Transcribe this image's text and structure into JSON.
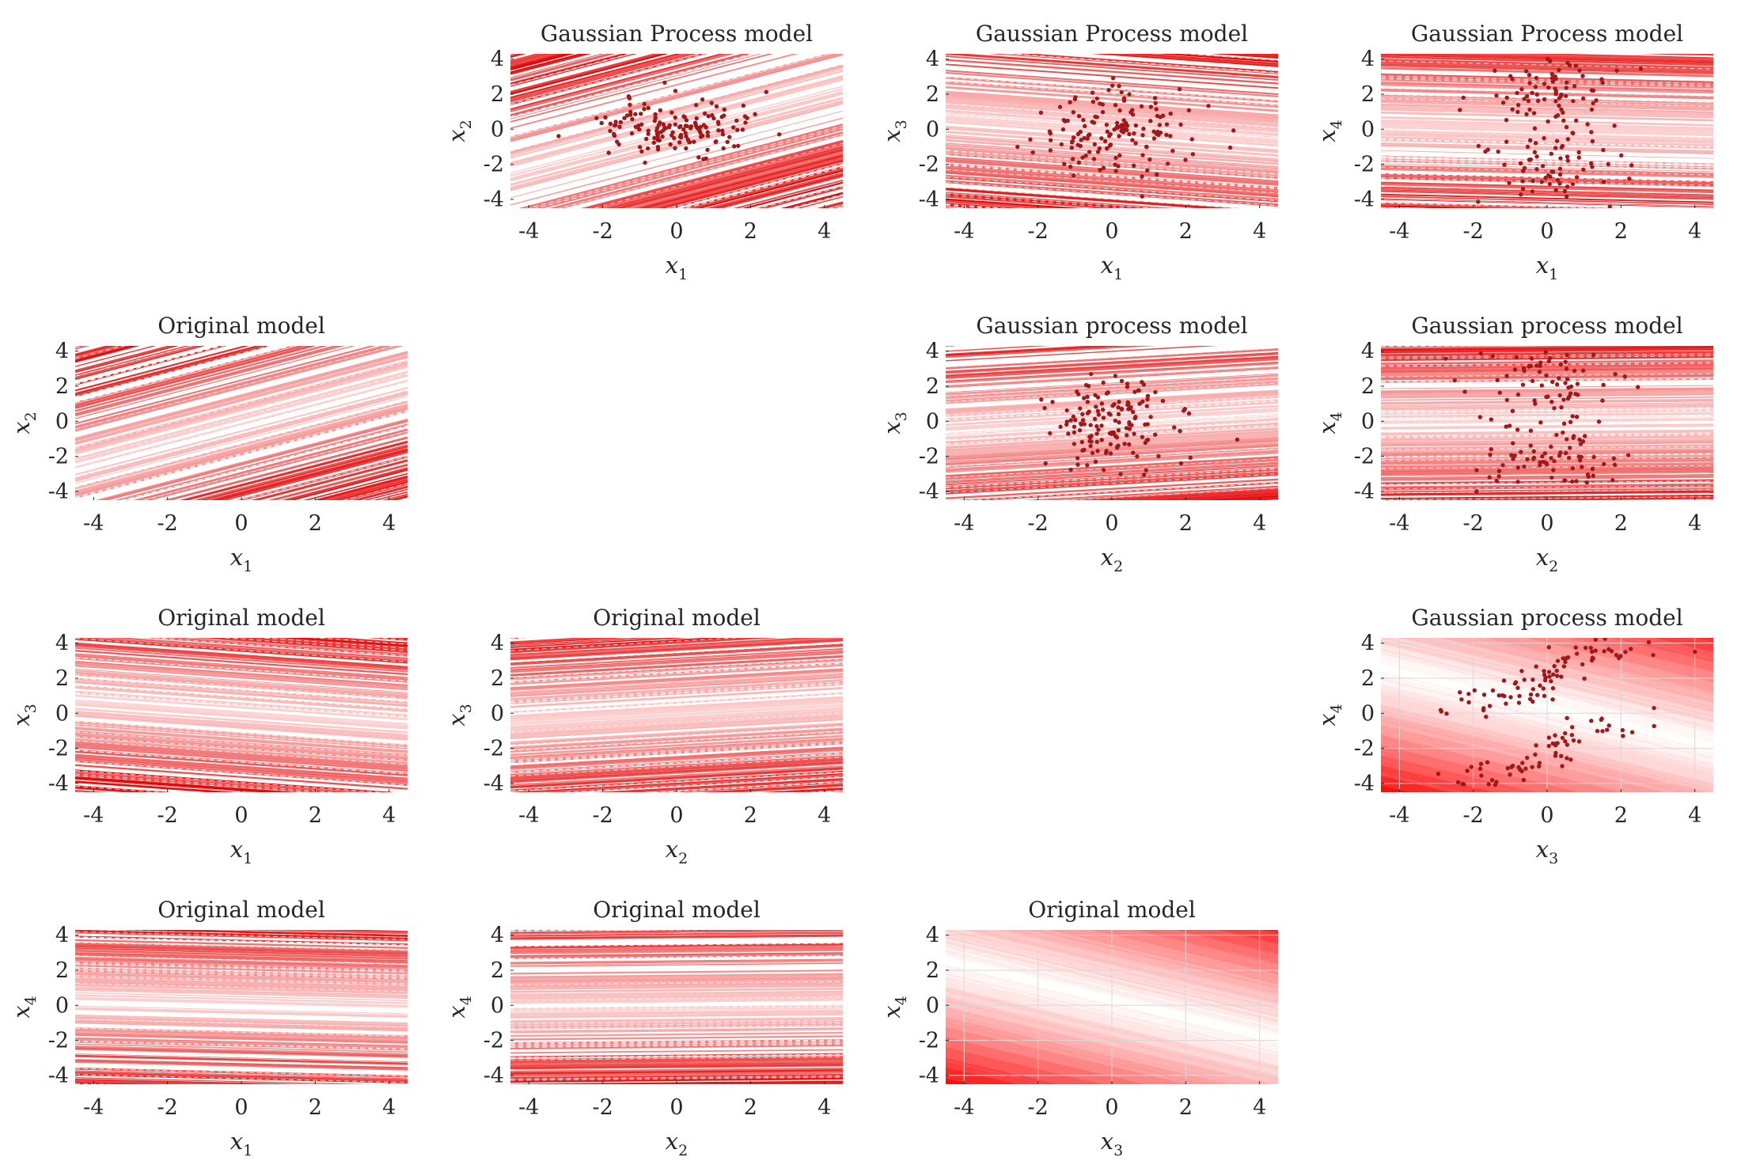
{
  "figure": {
    "rows": 4,
    "cols": 4,
    "grid_layout": "lower-triangle original models, upper-triangle Gaussian process models"
  },
  "colors": {
    "line_light": "#ffe6e6",
    "line_dark": "#e60000",
    "fill_light": "#ffffff",
    "fill_dark": "#ff0000",
    "points": "#a01818",
    "tick_text": "#262626"
  },
  "chart_data": [
    {
      "type": "contour-lines",
      "title": "Gaussian Process model",
      "row": 0,
      "col": 1,
      "xlabel": "x",
      "xsub": "1",
      "ylabel": "x",
      "ysub": "2",
      "xlim": [
        -4.5,
        4.5
      ],
      "ylim": [
        -4.5,
        4.3
      ],
      "xticks": [
        -4,
        -2,
        0,
        2,
        4
      ],
      "yticks": [
        -4,
        -2,
        0,
        2,
        4
      ],
      "slope": 0.55,
      "style": "lines",
      "scatter": true,
      "scatter_pattern": "blob",
      "scatter_spread": [
        1.1,
        0.8
      ]
    },
    {
      "type": "contour-lines",
      "title": "Gaussian Process model",
      "row": 0,
      "col": 2,
      "xlabel": "x",
      "xsub": "1",
      "ylabel": "x",
      "ysub": "3",
      "xlim": [
        -4.5,
        4.5
      ],
      "ylim": [
        -4.5,
        4.3
      ],
      "xticks": [
        -4,
        -2,
        0,
        2,
        4
      ],
      "yticks": [
        -4,
        -2,
        0,
        2,
        4
      ],
      "slope": -0.15,
      "style": "lines",
      "scatter": true,
      "scatter_pattern": "blob",
      "scatter_spread": [
        1.0,
        1.3
      ]
    },
    {
      "type": "contour-lines",
      "title": "Gaussian Process model",
      "row": 0,
      "col": 3,
      "xlabel": "x",
      "xsub": "1",
      "ylabel": "x",
      "ysub": "4",
      "xlim": [
        -4.5,
        4.5
      ],
      "ylim": [
        -4.5,
        4.3
      ],
      "xticks": [
        -4,
        -2,
        0,
        2,
        4
      ],
      "yticks": [
        -4,
        -2,
        0,
        2,
        4
      ],
      "slope": -0.05,
      "style": "lines",
      "scatter": true,
      "scatter_pattern": "bimodal",
      "scatter_spread": [
        1.0,
        1.1
      ]
    },
    {
      "type": "contour-lines",
      "title": "Original model",
      "row": 1,
      "col": 0,
      "xlabel": "x",
      "xsub": "1",
      "ylabel": "x",
      "ysub": "2",
      "xlim": [
        -4.5,
        4.5
      ],
      "ylim": [
        -4.5,
        4.3
      ],
      "xticks": [
        -4,
        -2,
        0,
        2,
        4
      ],
      "yticks": [
        -4,
        -2,
        0,
        2,
        4
      ],
      "slope": 0.55,
      "style": "lines",
      "scatter": false
    },
    {
      "type": "contour-lines",
      "title": "Gaussian process model",
      "row": 1,
      "col": 2,
      "xlabel": "x",
      "xsub": "2",
      "ylabel": "x",
      "ysub": "3",
      "xlim": [
        -4.5,
        4.5
      ],
      "ylim": [
        -4.5,
        4.3
      ],
      "xticks": [
        -4,
        -2,
        0,
        2,
        4
      ],
      "yticks": [
        -4,
        -2,
        0,
        2,
        4
      ],
      "slope": 0.12,
      "style": "lines",
      "scatter": true,
      "scatter_pattern": "blob",
      "scatter_spread": [
        1.0,
        1.3
      ]
    },
    {
      "type": "contour-lines",
      "title": "Gaussian process model",
      "row": 1,
      "col": 3,
      "xlabel": "x",
      "xsub": "2",
      "ylabel": "x",
      "ysub": "4",
      "xlim": [
        -4.5,
        4.5
      ],
      "ylim": [
        -4.5,
        4.3
      ],
      "xticks": [
        -4,
        -2,
        0,
        2,
        4
      ],
      "yticks": [
        -4,
        -2,
        0,
        2,
        4
      ],
      "slope": 0.02,
      "style": "lines",
      "scatter": true,
      "scatter_pattern": "bimodal",
      "scatter_spread": [
        1.0,
        1.1
      ]
    },
    {
      "type": "contour-lines",
      "title": "Original model",
      "row": 2,
      "col": 0,
      "xlabel": "x",
      "xsub": "1",
      "ylabel": "x",
      "ysub": "3",
      "xlim": [
        -4.5,
        4.5
      ],
      "ylim": [
        -4.5,
        4.3
      ],
      "xticks": [
        -4,
        -2,
        0,
        2,
        4
      ],
      "yticks": [
        -4,
        -2,
        0,
        2,
        4
      ],
      "slope": -0.15,
      "style": "lines",
      "scatter": false
    },
    {
      "type": "contour-lines",
      "title": "Original model",
      "row": 2,
      "col": 1,
      "xlabel": "x",
      "xsub": "2",
      "ylabel": "x",
      "ysub": "3",
      "xlim": [
        -4.5,
        4.5
      ],
      "ylim": [
        -4.5,
        4.3
      ],
      "xticks": [
        -4,
        -2,
        0,
        2,
        4
      ],
      "yticks": [
        -4,
        -2,
        0,
        2,
        4
      ],
      "slope": 0.12,
      "style": "lines",
      "scatter": false
    },
    {
      "type": "contour-bands",
      "title": "Gaussian process model",
      "row": 2,
      "col": 3,
      "xlabel": "x",
      "xsub": "3",
      "ylabel": "x",
      "ysub": "4",
      "xlim": [
        -4.5,
        4.5
      ],
      "ylim": [
        -4.5,
        4.3
      ],
      "xticks": [
        -4,
        -2,
        0,
        2,
        4
      ],
      "yticks": [
        -4,
        -2,
        0,
        2,
        4
      ],
      "slope": -0.5,
      "style": "bands",
      "scatter": true,
      "scatter_pattern": "s-curve",
      "scatter_spread": [
        0.35,
        0.5
      ]
    },
    {
      "type": "contour-lines",
      "title": "Original model",
      "row": 3,
      "col": 0,
      "xlabel": "x",
      "xsub": "1",
      "ylabel": "x",
      "ysub": "4",
      "xlim": [
        -4.5,
        4.5
      ],
      "ylim": [
        -4.5,
        4.3
      ],
      "xticks": [
        -4,
        -2,
        0,
        2,
        4
      ],
      "yticks": [
        -4,
        -2,
        0,
        2,
        4
      ],
      "slope": -0.05,
      "style": "lines",
      "scatter": false
    },
    {
      "type": "contour-lines",
      "title": "Original model",
      "row": 3,
      "col": 1,
      "xlabel": "x",
      "xsub": "2",
      "ylabel": "x",
      "ysub": "4",
      "xlim": [
        -4.5,
        4.5
      ],
      "ylim": [
        -4.5,
        4.3
      ],
      "xticks": [
        -4,
        -2,
        0,
        2,
        4
      ],
      "yticks": [
        -4,
        -2,
        0,
        2,
        4
      ],
      "slope": 0.02,
      "style": "lines",
      "scatter": false
    },
    {
      "type": "contour-bands",
      "title": "Original model",
      "row": 3,
      "col": 2,
      "xlabel": "x",
      "xsub": "3",
      "ylabel": "x",
      "ysub": "4",
      "xlim": [
        -4.5,
        4.5
      ],
      "ylim": [
        -4.5,
        4.3
      ],
      "xticks": [
        -4,
        -2,
        0,
        2,
        4
      ],
      "yticks": [
        -4,
        -2,
        0,
        2,
        4
      ],
      "slope": -0.5,
      "style": "bands",
      "scatter": false
    }
  ]
}
